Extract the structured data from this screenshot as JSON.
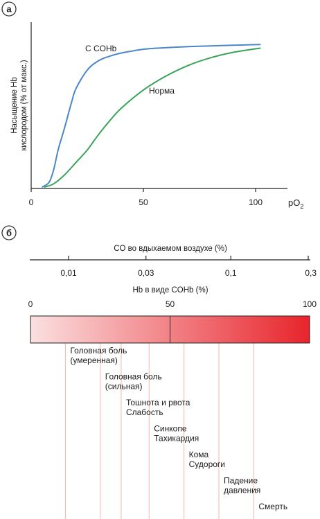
{
  "panel_a": {
    "badge": "а",
    "chart_data": {
      "type": "line",
      "title": "",
      "ylabel_line1": "Насыщение Hb",
      "ylabel_line2": "кислородом (% от макс.)",
      "xlabel": "pO",
      "xlabel_sub": "2",
      "xlim": [
        0,
        120
      ],
      "ylim": [
        0,
        100
      ],
      "xticks": [
        0,
        50,
        100
      ],
      "grid": false,
      "series": [
        {
          "name": "С COHb",
          "color": "#4a86c8",
          "x": [
            5,
            8,
            10,
            12,
            15,
            18,
            20,
            25,
            30,
            35,
            40,
            50,
            60,
            70,
            80,
            90,
            100,
            102
          ],
          "y": [
            1,
            4,
            12,
            25,
            40,
            56,
            65,
            77,
            83,
            86,
            88,
            90.5,
            91.5,
            92.2,
            92.7,
            93.1,
            93.5,
            93.6
          ]
        },
        {
          "name": "Норма",
          "color": "#3aa35a",
          "x": [
            6,
            10,
            15,
            20,
            25,
            30,
            35,
            40,
            50,
            60,
            70,
            80,
            90,
            100,
            102
          ],
          "y": [
            1,
            3,
            9,
            17,
            25,
            35,
            44,
            52,
            64,
            73,
            80,
            85,
            88.5,
            90.8,
            91.2
          ]
        }
      ]
    }
  },
  "panel_b": {
    "badge": "б",
    "co_axis": {
      "title": "CO во вдыхаемом воздухе (%)",
      "ticks": [
        {
          "value": 0.01,
          "label": "0,01"
        },
        {
          "value": 0.03,
          "label": "0,03"
        },
        {
          "value": 0.1,
          "label": "0,1"
        },
        {
          "value": 0.3,
          "label": "0,3"
        }
      ]
    },
    "hb_axis": {
      "title": "Hb в виде COHb (%)",
      "min": 0,
      "max": 100,
      "ticks": [
        {
          "value": 0,
          "label": "0"
        },
        {
          "value": 50,
          "label": "50"
        },
        {
          "value": 100,
          "label": "100"
        }
      ]
    },
    "gradient": {
      "from": "#fbe0e0",
      "to": "#e8242b"
    },
    "symptoms": [
      {
        "at": 12.5,
        "lines": [
          "Головная боль",
          "(умеренная)"
        ]
      },
      {
        "at": 25,
        "lines": [
          "Головная боль",
          "(сильная)"
        ]
      },
      {
        "at": 32.5,
        "lines": [
          "Тошнота и рвота",
          "Слабость"
        ]
      },
      {
        "at": 42.5,
        "lines": [
          "Синкопе",
          "Тахикардия"
        ]
      },
      {
        "at": 55,
        "lines": [
          "Кома",
          "Судороги"
        ]
      },
      {
        "at": 67.5,
        "lines": [
          "Падение",
          "давления"
        ]
      },
      {
        "at": 80,
        "lines": [
          "Смерть"
        ]
      }
    ]
  }
}
